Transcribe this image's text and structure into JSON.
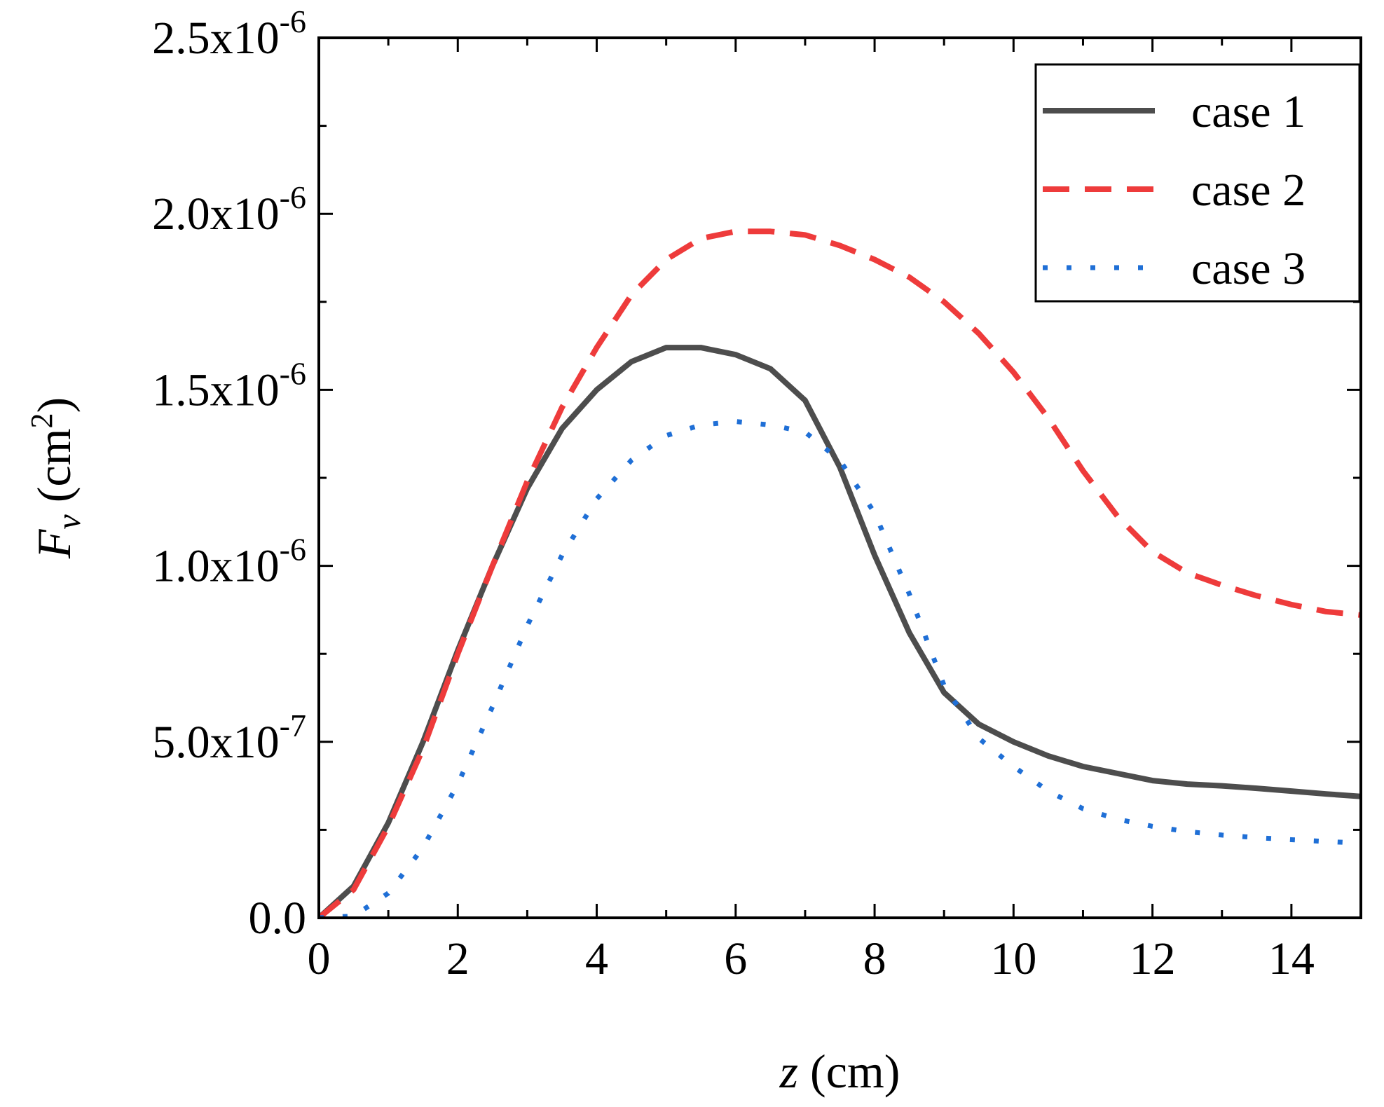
{
  "chart_data": {
    "type": "line",
    "title": "",
    "xlabel": {
      "var": "z",
      "unit": " (cm)"
    },
    "ylabel": {
      "var": "F",
      "sub": "v",
      "unit_pre": " (cm",
      "unit_sup": "2",
      "unit_post": ")"
    },
    "xlim": [
      0,
      15
    ],
    "ylim": [
      0,
      2.5e-06
    ],
    "x_ticks": [
      0,
      2,
      4,
      6,
      8,
      10,
      12,
      14
    ],
    "x_tick_labels": [
      "0",
      "2",
      "4",
      "6",
      "8",
      "10",
      "12",
      "14"
    ],
    "y_ticks": [
      0,
      5e-07,
      1e-06,
      1.5e-06,
      2e-06,
      2.5e-06
    ],
    "y_tick_labels": [
      {
        "base": "0.0",
        "exp": ""
      },
      {
        "base": "5.0x10",
        "exp": "-7"
      },
      {
        "base": "1.0x10",
        "exp": "-6"
      },
      {
        "base": "1.5x10",
        "exp": "-6"
      },
      {
        "base": "2.0x10",
        "exp": "-6"
      },
      {
        "base": "2.5x10",
        "exp": "-6"
      }
    ],
    "legend_position": "top-right",
    "grid": false,
    "series": [
      {
        "name": "case 1",
        "color": "#4d4d4d",
        "style": "solid",
        "x": [
          0,
          0.5,
          1,
          1.5,
          2,
          2.5,
          3,
          3.5,
          4,
          4.5,
          5,
          5.5,
          6,
          6.5,
          7,
          7.5,
          8,
          8.5,
          9,
          9.5,
          10,
          10.5,
          11,
          11.5,
          12,
          12.5,
          13,
          13.5,
          14,
          14.5,
          15
        ],
        "y": [
          0,
          9e-08,
          2.7e-07,
          5e-07,
          7.6e-07,
          1e-06,
          1.22e-06,
          1.39e-06,
          1.5e-06,
          1.58e-06,
          1.62e-06,
          1.62e-06,
          1.6e-06,
          1.56e-06,
          1.47e-06,
          1.28e-06,
          1.03e-06,
          8.1e-07,
          6.4e-07,
          5.5e-07,
          5e-07,
          4.6e-07,
          4.3e-07,
          4.1e-07,
          3.9e-07,
          3.8e-07,
          3.75e-07,
          3.68e-07,
          3.6e-07,
          3.52e-07,
          3.45e-07
        ]
      },
      {
        "name": "case 2",
        "color": "#ee3b3b",
        "style": "dashed",
        "x": [
          0,
          0.5,
          1,
          1.5,
          2,
          2.5,
          3,
          3.5,
          4,
          4.5,
          5,
          5.5,
          6,
          6.5,
          7,
          7.5,
          8,
          8.5,
          9,
          9.5,
          10,
          10.5,
          11,
          11.5,
          12,
          12.5,
          13,
          13.5,
          14,
          14.5,
          15
        ],
        "y": [
          0,
          8e-08,
          2.6e-07,
          4.8e-07,
          7.5e-07,
          1e-06,
          1.24e-06,
          1.45e-06,
          1.62e-06,
          1.77e-06,
          1.87e-06,
          1.93e-06,
          1.95e-06,
          1.95e-06,
          1.94e-06,
          1.91e-06,
          1.87e-06,
          1.82e-06,
          1.75e-06,
          1.66e-06,
          1.55e-06,
          1.42e-06,
          1.27e-06,
          1.14e-06,
          1.04e-06,
          9.8e-07,
          9.45e-07,
          9.15e-07,
          8.9e-07,
          8.7e-07,
          8.6e-07
        ]
      },
      {
        "name": "case 3",
        "color": "#1f6fd6",
        "style": "dotted",
        "x": [
          0,
          0.5,
          1,
          1.5,
          2,
          2.5,
          3,
          3.5,
          4,
          4.5,
          5,
          5.5,
          6,
          6.5,
          7,
          7.5,
          8,
          8.5,
          9,
          9.5,
          10,
          10.5,
          11,
          11.5,
          12,
          12.5,
          13,
          13.5,
          14,
          14.5,
          15
        ],
        "y": [
          0,
          5e-09,
          7e-08,
          2e-07,
          3.8e-07,
          6e-07,
          8.3e-07,
          1.03e-06,
          1.19e-06,
          1.3e-06,
          1.37e-06,
          1.4e-06,
          1.41e-06,
          1.4e-06,
          1.38e-06,
          1.3e-06,
          1.15e-06,
          9.2e-07,
          6.6e-07,
          5.1e-07,
          4.3e-07,
          3.6e-07,
          3.1e-07,
          2.8e-07,
          2.6e-07,
          2.45e-07,
          2.35e-07,
          2.28e-07,
          2.22e-07,
          2.17e-07,
          2.12e-07
        ]
      }
    ]
  }
}
